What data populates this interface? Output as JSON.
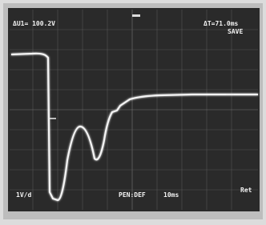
{
  "readouts": {
    "top_left": "ΔU1= 100.2V",
    "top_right": "ΔT=71.0ms",
    "mode": "SAVE",
    "bottom_left": "1V/d",
    "bottom_center": "PEN:DEF",
    "bottom_timebase": "10ms",
    "bottom_right": "Ret"
  }
}
